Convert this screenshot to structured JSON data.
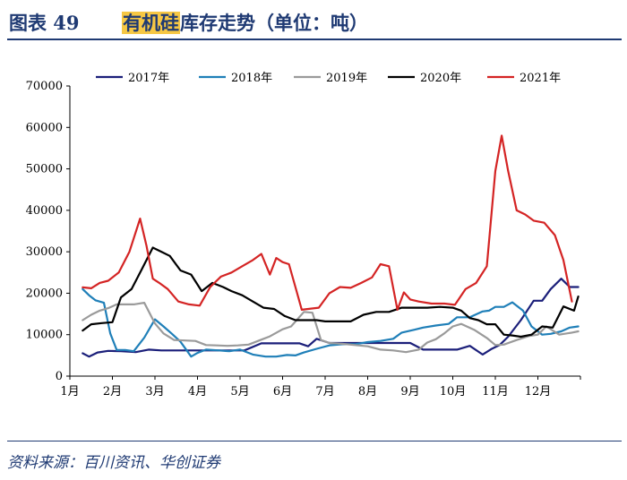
{
  "header": {
    "figure_number": "图表 49",
    "title_highlight": "有机硅",
    "title_rest": "库存走势（单位：吨）"
  },
  "footer": {
    "source": "资料来源：百川资讯、华创证券"
  },
  "chart_data": {
    "type": "line",
    "title": "",
    "xlabel": "",
    "ylabel": "",
    "ylim": [
      0,
      70000
    ],
    "yticks": [
      "0",
      "10000",
      "20000",
      "30000",
      "40000",
      "50000",
      "60000",
      "70000"
    ],
    "xlim": [
      1,
      13
    ],
    "xticks": [
      "1月",
      "2月",
      "3月",
      "4月",
      "5月",
      "6月",
      "7月",
      "8月",
      "9月",
      "10月",
      "11月",
      "12月"
    ],
    "grid": false,
    "legend": "top",
    "series": [
      {
        "name": "2017年",
        "color": "#1b1f7a",
        "x": [
          1.3,
          1.45,
          1.65,
          1.9,
          2.2,
          2.55,
          2.85,
          3.15,
          3.6,
          4.1,
          4.6,
          5.1,
          5.5,
          6.0,
          6.4,
          6.6,
          6.8,
          7.1,
          7.6,
          8.1,
          8.6,
          9.0,
          9.3,
          9.7,
          10.1,
          10.4,
          10.7,
          10.9,
          11.1,
          11.3,
          11.6,
          11.9,
          12.1,
          12.3,
          12.55,
          12.75,
          12.95
        ],
        "y": [
          5500,
          4700,
          5700,
          6100,
          6000,
          5800,
          6400,
          6200,
          6200,
          6200,
          6200,
          6200,
          7900,
          7900,
          7900,
          7200,
          9000,
          8000,
          8000,
          8000,
          8000,
          8000,
          6400,
          6400,
          6400,
          7300,
          5200,
          6500,
          7500,
          9500,
          13500,
          18200,
          18200,
          21000,
          23500,
          21500,
          21500
        ]
      },
      {
        "name": "2018年",
        "color": "#1f7fb8",
        "x": [
          1.3,
          1.45,
          1.6,
          1.8,
          1.95,
          2.1,
          2.3,
          2.5,
          2.75,
          3.0,
          3.2,
          3.4,
          3.6,
          3.85,
          4.0,
          4.2,
          4.5,
          4.75,
          5.0,
          5.3,
          5.6,
          5.85,
          6.1,
          6.3,
          6.5,
          6.8,
          7.1,
          7.4,
          7.7,
          8.0,
          8.3,
          8.6,
          8.8,
          9.1,
          9.3,
          9.6,
          9.9,
          10.1,
          10.4,
          10.7,
          10.85,
          11.0,
          11.2,
          11.4,
          11.65,
          11.85,
          12.1,
          12.3,
          12.55,
          12.75,
          12.95
        ],
        "y": [
          21000,
          19500,
          18300,
          17700,
          10300,
          6300,
          6300,
          6000,
          9300,
          13700,
          12000,
          10200,
          8300,
          4700,
          5600,
          6400,
          6200,
          6000,
          6400,
          5200,
          4700,
          4700,
          5100,
          5000,
          5700,
          6600,
          7400,
          7700,
          7700,
          8200,
          8500,
          9000,
          10500,
          11200,
          11700,
          12200,
          12600,
          14200,
          14200,
          15600,
          15800,
          16700,
          16700,
          17800,
          15800,
          12000,
          10000,
          10200,
          10800,
          11700,
          12000
        ]
      },
      {
        "name": "2019年",
        "color": "#9a9a9a",
        "x": [
          1.3,
          1.5,
          1.7,
          1.9,
          2.1,
          2.3,
          2.5,
          2.75,
          3.0,
          3.2,
          3.45,
          3.7,
          3.95,
          4.2,
          4.45,
          4.7,
          4.95,
          5.2,
          5.45,
          5.7,
          6.0,
          6.2,
          6.5,
          6.7,
          6.9,
          7.1,
          7.4,
          7.7,
          8.0,
          8.3,
          8.6,
          8.9,
          9.2,
          9.4,
          9.6,
          9.8,
          10.0,
          10.2,
          10.5,
          10.8,
          11.0,
          11.2,
          11.5,
          11.8,
          12.0,
          12.2,
          12.5,
          12.8,
          12.95
        ],
        "y": [
          13500,
          14800,
          15800,
          16400,
          17300,
          17300,
          17300,
          17700,
          12700,
          10300,
          8700,
          8600,
          8500,
          7500,
          7400,
          7300,
          7400,
          7600,
          8600,
          9600,
          11300,
          12000,
          15500,
          15300,
          8700,
          8000,
          7800,
          7500,
          7200,
          6400,
          6200,
          5800,
          6400,
          8100,
          8900,
          10300,
          12000,
          12600,
          11200,
          9200,
          7500,
          7600,
          8700,
          9700,
          10000,
          12000,
          10000,
          10500,
          10800
        ]
      },
      {
        "name": "2020年",
        "color": "#000000",
        "x": [
          1.3,
          1.5,
          1.75,
          2.0,
          2.2,
          2.45,
          2.7,
          2.95,
          3.15,
          3.35,
          3.6,
          3.85,
          4.1,
          4.35,
          4.6,
          4.8,
          5.05,
          5.3,
          5.55,
          5.8,
          6.05,
          6.3,
          6.55,
          6.8,
          7.0,
          7.3,
          7.6,
          7.9,
          8.2,
          8.5,
          8.8,
          9.1,
          9.4,
          9.7,
          10.0,
          10.2,
          10.4,
          10.6,
          10.8,
          11.0,
          11.2,
          11.4,
          11.6,
          11.85,
          12.1,
          12.35,
          12.6,
          12.85,
          12.95
        ],
        "y": [
          11000,
          12500,
          12800,
          13000,
          19000,
          21000,
          26000,
          31000,
          30000,
          29000,
          25500,
          24500,
          20500,
          22500,
          21500,
          20500,
          19500,
          18000,
          16500,
          16200,
          14500,
          13500,
          13500,
          13500,
          13200,
          13200,
          13200,
          14800,
          15500,
          15500,
          16500,
          16500,
          16500,
          16700,
          16500,
          15800,
          14000,
          13500,
          12500,
          12500,
          10000,
          9800,
          9500,
          10000,
          12000,
          11700,
          16800,
          15800,
          19200
        ]
      },
      {
        "name": "2021年",
        "color": "#d42424",
        "x": [
          1.3,
          1.5,
          1.7,
          1.9,
          2.15,
          2.4,
          2.65,
          2.8,
          2.95,
          3.1,
          3.3,
          3.55,
          3.8,
          4.05,
          4.3,
          4.55,
          4.8,
          5.05,
          5.3,
          5.5,
          5.7,
          5.85,
          6.0,
          6.15,
          6.3,
          6.45,
          6.6,
          6.85,
          7.1,
          7.35,
          7.6,
          7.85,
          8.1,
          8.3,
          8.5,
          8.7,
          8.85,
          9.0,
          9.2,
          9.5,
          9.8,
          10.05,
          10.3,
          10.55,
          10.8,
          11.0,
          11.15,
          11.3,
          11.5,
          11.7,
          11.9,
          12.15,
          12.4,
          12.6,
          12.8
        ],
        "y": [
          21400,
          21200,
          22500,
          23000,
          25000,
          30000,
          38000,
          31500,
          23500,
          22500,
          21000,
          18000,
          17300,
          17000,
          21500,
          24000,
          25000,
          26500,
          28000,
          29500,
          24500,
          28500,
          27500,
          27000,
          21500,
          16000,
          16200,
          16500,
          20000,
          21500,
          21300,
          22500,
          23800,
          27000,
          26500,
          16000,
          20200,
          18500,
          18000,
          17500,
          17500,
          17200,
          21000,
          22500,
          26500,
          49500,
          58000,
          49500,
          40000,
          39000,
          37500,
          37000,
          34000,
          28000,
          18000
        ]
      }
    ]
  }
}
